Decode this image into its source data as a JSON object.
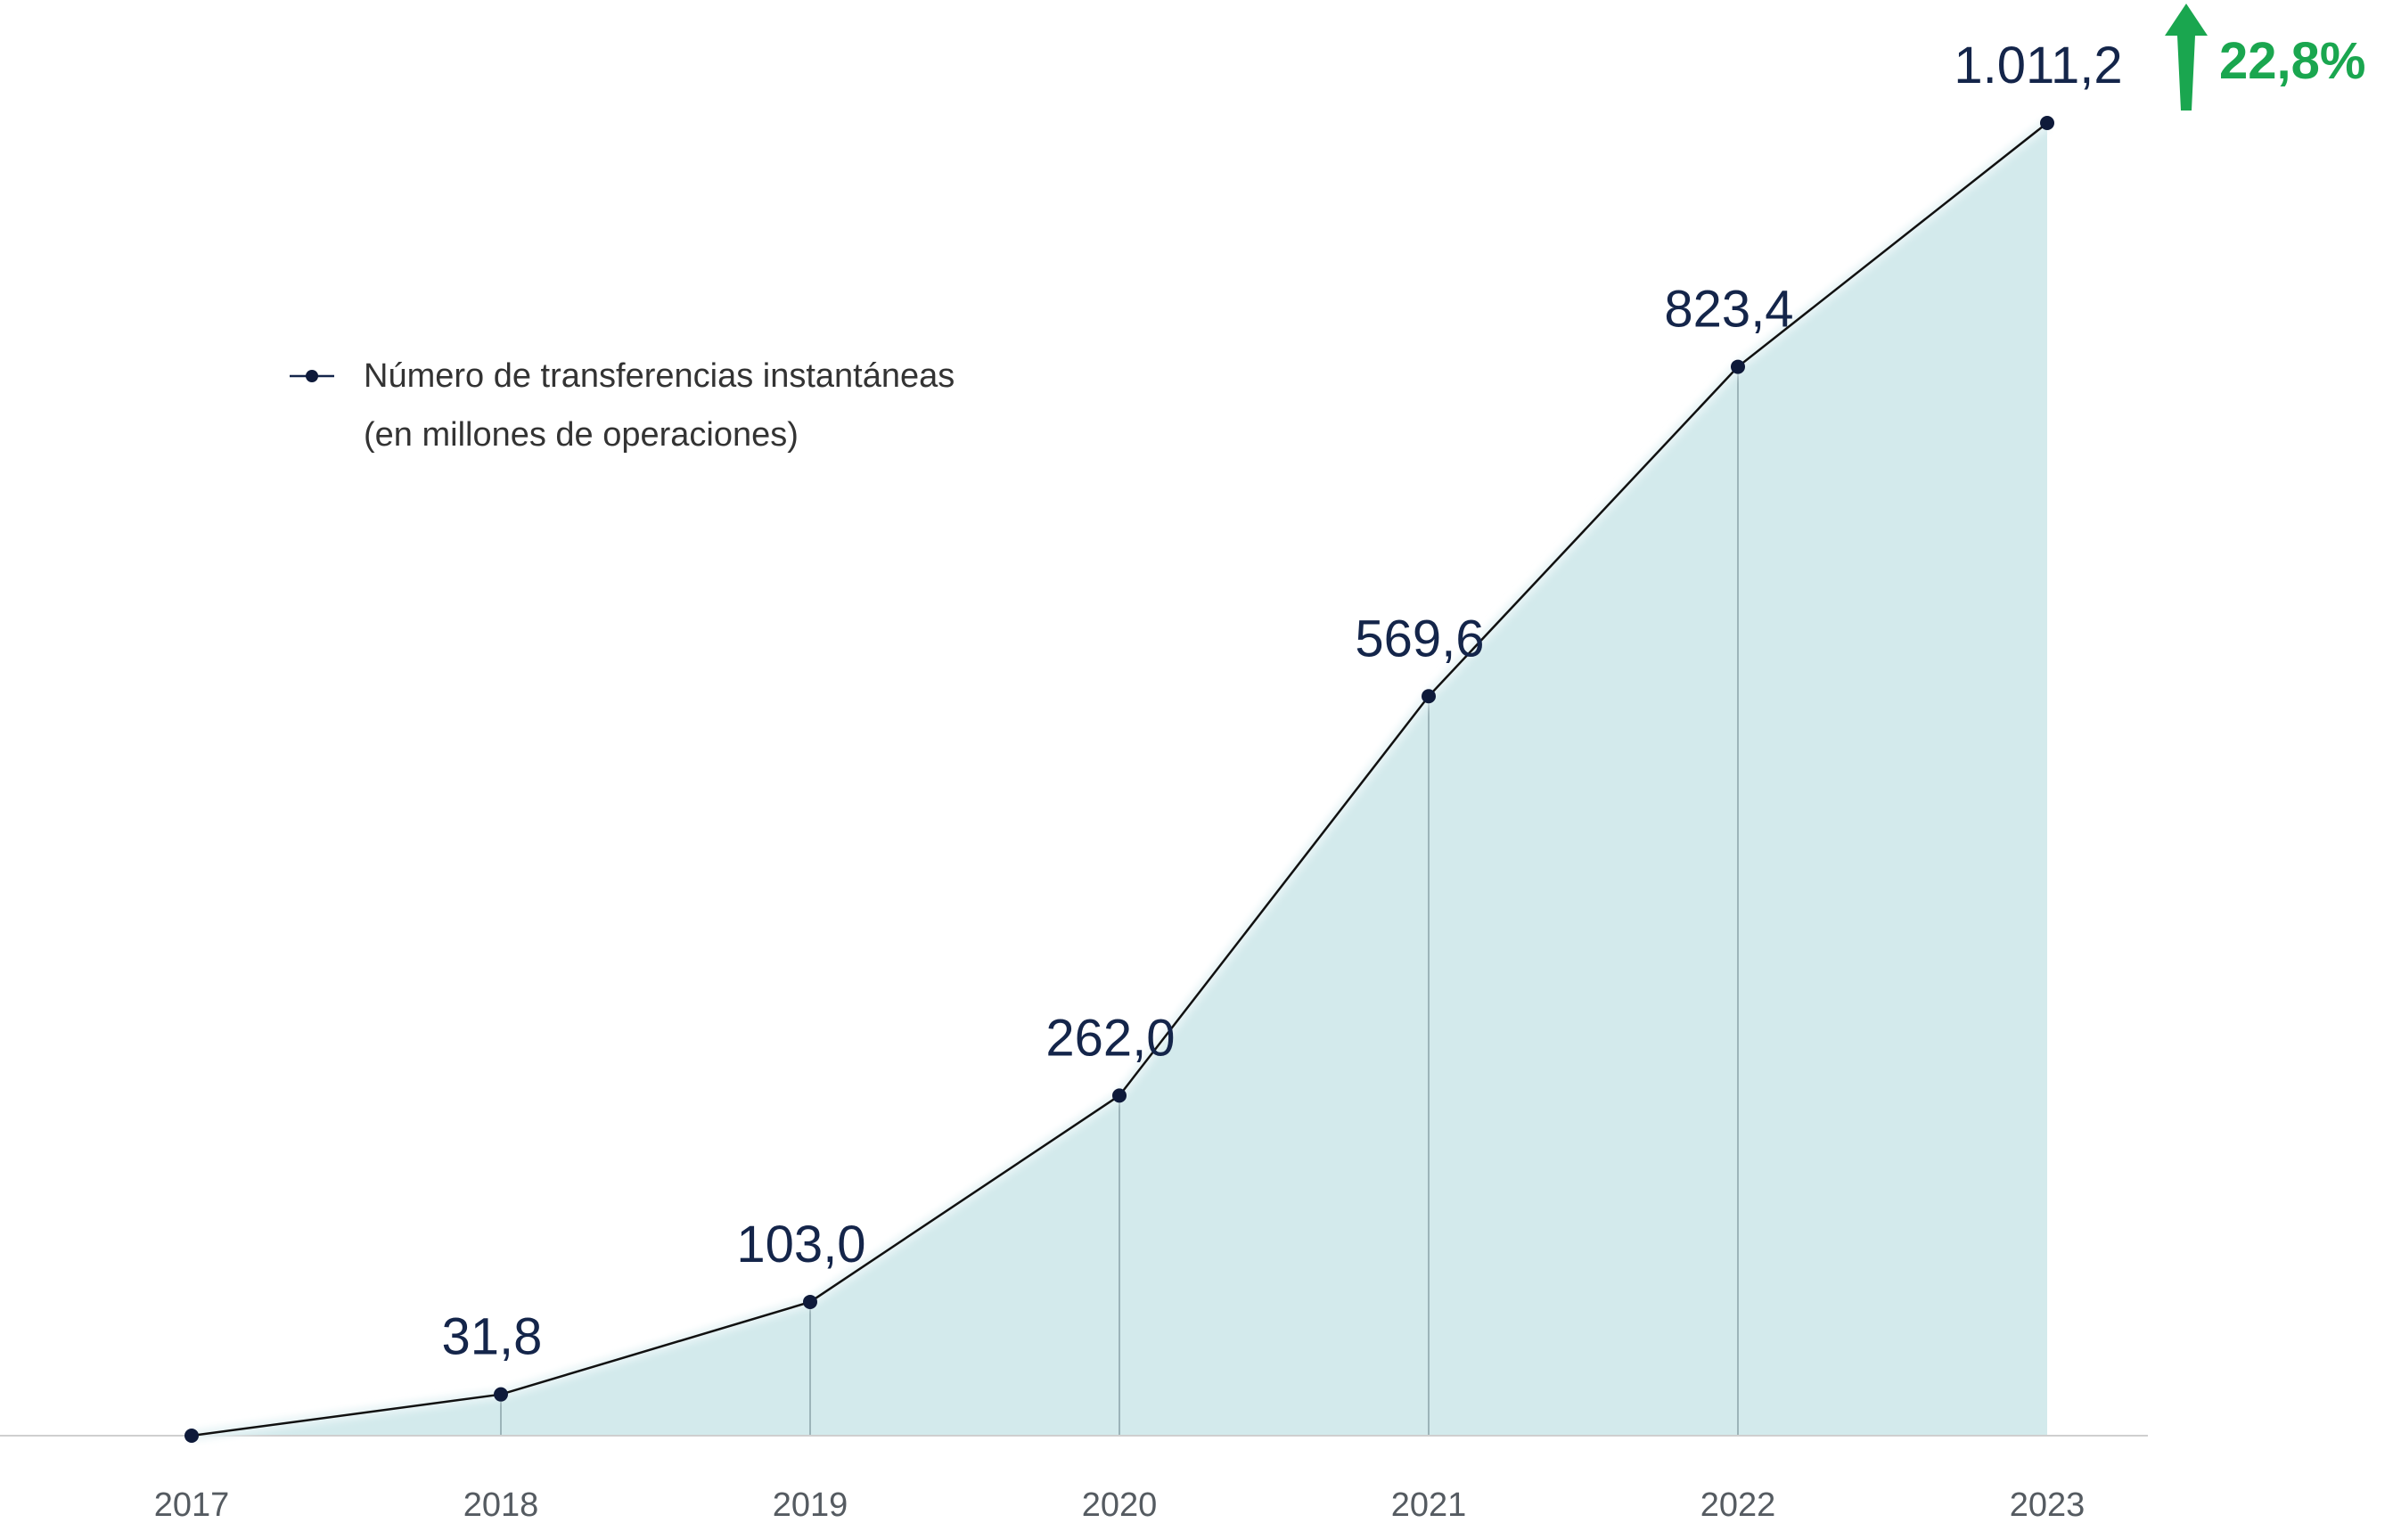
{
  "chart_data": {
    "type": "area",
    "categories": [
      "2017",
      "2018",
      "2019",
      "2020",
      "2021",
      "2022",
      "2023"
    ],
    "series": [
      {
        "name": "Número de transferencias instantáneas (en millones de operaciones)",
        "values": [
          0,
          31.8,
          103.0,
          262.0,
          569.6,
          823.4,
          1011.2
        ],
        "labels": [
          "",
          "31,8",
          "103,0",
          "262,0",
          "569,6",
          "823,4",
          "1.011,2"
        ]
      }
    ],
    "ylim": [
      0,
      1011.2
    ],
    "grid": false,
    "legend": {
      "position": "top-left",
      "line1": "Número de transferencias instantáneas",
      "line2": "(en millones de operaciones)"
    },
    "annotation": {
      "text": "22,8%",
      "icon": "arrow-up-icon",
      "color": "#1aa64f"
    },
    "colors": {
      "area": "#d3eaec",
      "line": "#111111",
      "marker": "#0e1a3a",
      "value_text": "#14254a",
      "axis": "#cfcfcf"
    }
  }
}
